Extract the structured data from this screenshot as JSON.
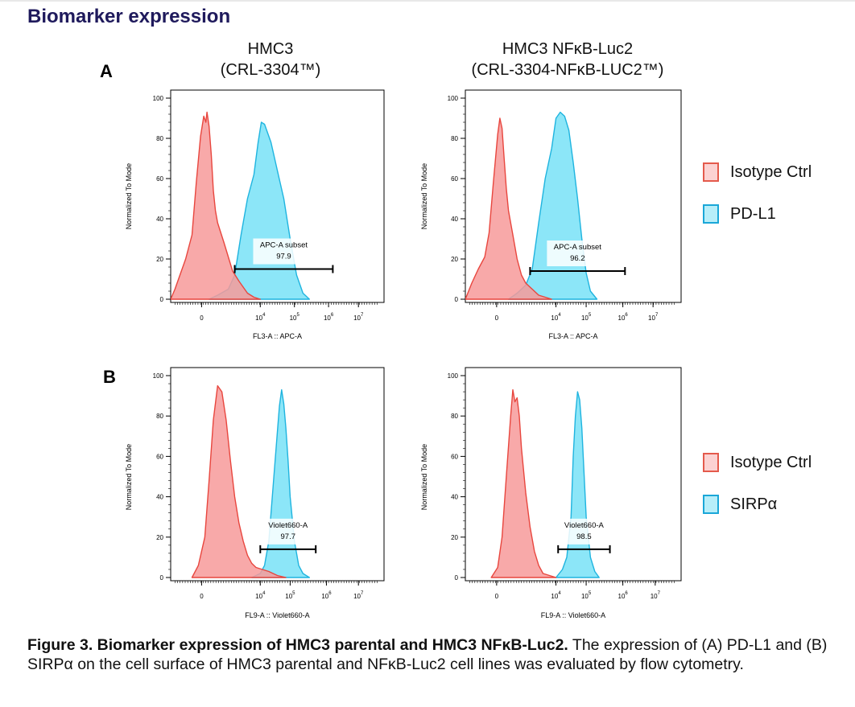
{
  "page_title": "Biomarker expression",
  "panel_labels": [
    "A",
    "B"
  ],
  "column_titles": [
    {
      "line1": "HMC3",
      "line2": "(CRL-3304™)"
    },
    {
      "line1": "HMC3 NFκB-Luc2",
      "line2": "(CRL-3304-NFκB-LUC2™)"
    }
  ],
  "legends": [
    {
      "items": [
        {
          "label": "Isotype Ctrl"
        },
        {
          "label": "PD-L1"
        }
      ]
    },
    {
      "items": [
        {
          "label": "Isotype Ctrl"
        },
        {
          "label": "SIRPα"
        }
      ]
    }
  ],
  "colors": {
    "isotype_fill": "#f79a9a",
    "isotype_stroke": "#e8463e",
    "marker_fill": "#7fe3f7",
    "marker_stroke": "#1fb4df",
    "overlap_fill": "#a795ac",
    "legend_isotype_bg": "#fcd2d2",
    "legend_marker_bg": "#b7eef9",
    "legend_isotype_border": "#e45a4c",
    "legend_marker_border": "#1aa7d8"
  },
  "caption": {
    "bold": "Figure 3. Biomarker expression of HMC3 parental and HMC3 NFκB-Luc2.",
    "text": " The expression of (A) PD-L1 and (B) SIRPα on the cell surface of HMC3 parental and NFκB-Luc2 cell lines was evaluated by flow cytometry."
  },
  "chart_data": [
    {
      "type": "area",
      "id": "A1",
      "xlabel": "FL3-A :: APC-A",
      "ylabel": "Normalized To Mode",
      "ylim": [
        0,
        100
      ],
      "yticks": [
        0,
        20,
        40,
        60,
        80,
        100
      ],
      "xticks": [
        {
          "pos": 0.145,
          "label": "0"
        },
        {
          "pos": 0.42,
          "label": "10",
          "exp": "4"
        },
        {
          "pos": 0.58,
          "label": "10",
          "exp": "5"
        },
        {
          "pos": 0.74,
          "label": "10",
          "exp": "6"
        },
        {
          "pos": 0.88,
          "label": "10",
          "exp": "7"
        }
      ],
      "series": [
        {
          "name": "Isotype Ctrl",
          "x": [
            0.0,
            0.02,
            0.04,
            0.07,
            0.1,
            0.12,
            0.14,
            0.155,
            0.165,
            0.17,
            0.18,
            0.19,
            0.2,
            0.21,
            0.22,
            0.235,
            0.25,
            0.27,
            0.29,
            0.32,
            0.36,
            0.39,
            0.42
          ],
          "y": [
            0,
            5,
            11,
            20,
            32,
            58,
            81,
            91,
            88,
            93,
            86,
            72,
            54,
            44,
            38,
            33,
            28,
            21,
            14,
            9,
            3,
            1,
            0
          ]
        },
        {
          "name": "PD-L1",
          "x": [
            0.18,
            0.22,
            0.27,
            0.3,
            0.33,
            0.36,
            0.39,
            0.41,
            0.425,
            0.44,
            0.47,
            0.5,
            0.53,
            0.56,
            0.59,
            0.62,
            0.65
          ],
          "y": [
            0,
            2,
            5,
            12,
            32,
            50,
            62,
            78,
            88,
            87,
            78,
            64,
            50,
            30,
            12,
            3,
            0
          ]
        }
      ],
      "gate": {
        "label": "APC-A subset",
        "value": "97.9",
        "x_start": 0.3,
        "x_end": 0.76,
        "y": 15
      }
    },
    {
      "type": "area",
      "id": "A2",
      "xlabel": "FL3-A :: APC-A",
      "ylabel": "Normalized To Mode",
      "ylim": [
        0,
        100
      ],
      "yticks": [
        0,
        20,
        40,
        60,
        80,
        100
      ],
      "xticks": [
        {
          "pos": 0.145,
          "label": "0"
        },
        {
          "pos": 0.42,
          "label": "10",
          "exp": "4"
        },
        {
          "pos": 0.56,
          "label": "10",
          "exp": "5"
        },
        {
          "pos": 0.73,
          "label": "10",
          "exp": "6"
        },
        {
          "pos": 0.87,
          "label": "10",
          "exp": "7"
        }
      ],
      "series": [
        {
          "name": "Isotype Ctrl",
          "x": [
            0.0,
            0.03,
            0.06,
            0.09,
            0.11,
            0.13,
            0.15,
            0.16,
            0.17,
            0.18,
            0.19,
            0.2,
            0.22,
            0.24,
            0.26,
            0.28,
            0.31,
            0.34,
            0.37,
            0.4
          ],
          "y": [
            0,
            8,
            15,
            21,
            33,
            58,
            82,
            90,
            85,
            70,
            55,
            44,
            32,
            20,
            12,
            8,
            5,
            2,
            1,
            0
          ]
        },
        {
          "name": "PD-L1",
          "x": [
            0.2,
            0.24,
            0.28,
            0.31,
            0.34,
            0.37,
            0.4,
            0.42,
            0.44,
            0.46,
            0.48,
            0.5,
            0.52,
            0.54,
            0.56,
            0.58,
            0.61
          ],
          "y": [
            0,
            3,
            7,
            15,
            38,
            60,
            75,
            90,
            93,
            91,
            84,
            68,
            50,
            30,
            13,
            4,
            0
          ]
        }
      ],
      "gate": {
        "label": "APC-A subset",
        "value": "96.2",
        "x_start": 0.3,
        "x_end": 0.74,
        "y": 14
      }
    },
    {
      "type": "area",
      "id": "B1",
      "xlabel": "FL9-A :: Violet660-A",
      "ylabel": "Normalized To Mode",
      "ylim": [
        0,
        100
      ],
      "yticks": [
        0,
        20,
        40,
        60,
        80,
        100
      ],
      "xticks": [
        {
          "pos": 0.145,
          "label": "0"
        },
        {
          "pos": 0.42,
          "label": "10",
          "exp": "4"
        },
        {
          "pos": 0.56,
          "label": "10",
          "exp": "5"
        },
        {
          "pos": 0.73,
          "label": "10",
          "exp": "6"
        },
        {
          "pos": 0.88,
          "label": "10",
          "exp": "7"
        }
      ],
      "series": [
        {
          "name": "Isotype Ctrl",
          "x": [
            0.1,
            0.13,
            0.16,
            0.18,
            0.2,
            0.22,
            0.24,
            0.26,
            0.28,
            0.3,
            0.32,
            0.34,
            0.36,
            0.38,
            0.4,
            0.43,
            0.46,
            0.5,
            0.54
          ],
          "y": [
            0,
            6,
            20,
            48,
            78,
            95,
            92,
            78,
            58,
            40,
            27,
            18,
            11,
            7,
            5,
            4,
            3,
            1,
            0
          ]
        },
        {
          "name": "SIRPα",
          "x": [
            0.38,
            0.42,
            0.44,
            0.46,
            0.48,
            0.5,
            0.51,
            0.52,
            0.53,
            0.54,
            0.55,
            0.56,
            0.58,
            0.6,
            0.62,
            0.65
          ],
          "y": [
            0,
            2,
            6,
            18,
            45,
            72,
            85,
            93,
            86,
            74,
            58,
            40,
            18,
            6,
            2,
            0
          ]
        }
      ],
      "gate": {
        "label": "Violet660-A",
        "value": "97.7",
        "x_start": 0.42,
        "x_end": 0.68,
        "y": 14
      }
    },
    {
      "type": "area",
      "id": "B2",
      "xlabel": "FL9-A :: Violet660-A",
      "ylabel": "Normalized To Mode",
      "ylim": [
        0,
        100
      ],
      "yticks": [
        0,
        20,
        40,
        60,
        80,
        100
      ],
      "xticks": [
        {
          "pos": 0.145,
          "label": "0"
        },
        {
          "pos": 0.42,
          "label": "10",
          "exp": "4"
        },
        {
          "pos": 0.56,
          "label": "10",
          "exp": "5"
        },
        {
          "pos": 0.73,
          "label": "10",
          "exp": "6"
        },
        {
          "pos": 0.88,
          "label": "10",
          "exp": "7"
        }
      ],
      "series": [
        {
          "name": "Isotype Ctrl",
          "x": [
            0.12,
            0.15,
            0.17,
            0.19,
            0.21,
            0.22,
            0.23,
            0.24,
            0.25,
            0.26,
            0.28,
            0.3,
            0.32,
            0.34,
            0.36,
            0.39,
            0.42
          ],
          "y": [
            0,
            5,
            20,
            50,
            80,
            93,
            87,
            89,
            80,
            64,
            42,
            25,
            13,
            6,
            2,
            1,
            0
          ]
        },
        {
          "name": "SIRPα",
          "x": [
            0.42,
            0.45,
            0.47,
            0.49,
            0.5,
            0.51,
            0.52,
            0.53,
            0.54,
            0.55,
            0.56,
            0.58,
            0.6,
            0.62
          ],
          "y": [
            0,
            4,
            10,
            30,
            60,
            80,
            92,
            88,
            74,
            52,
            30,
            10,
            3,
            0
          ]
        }
      ],
      "gate": {
        "label": "Violet660-A",
        "value": "98.5",
        "x_start": 0.43,
        "x_end": 0.67,
        "y": 14
      }
    }
  ]
}
